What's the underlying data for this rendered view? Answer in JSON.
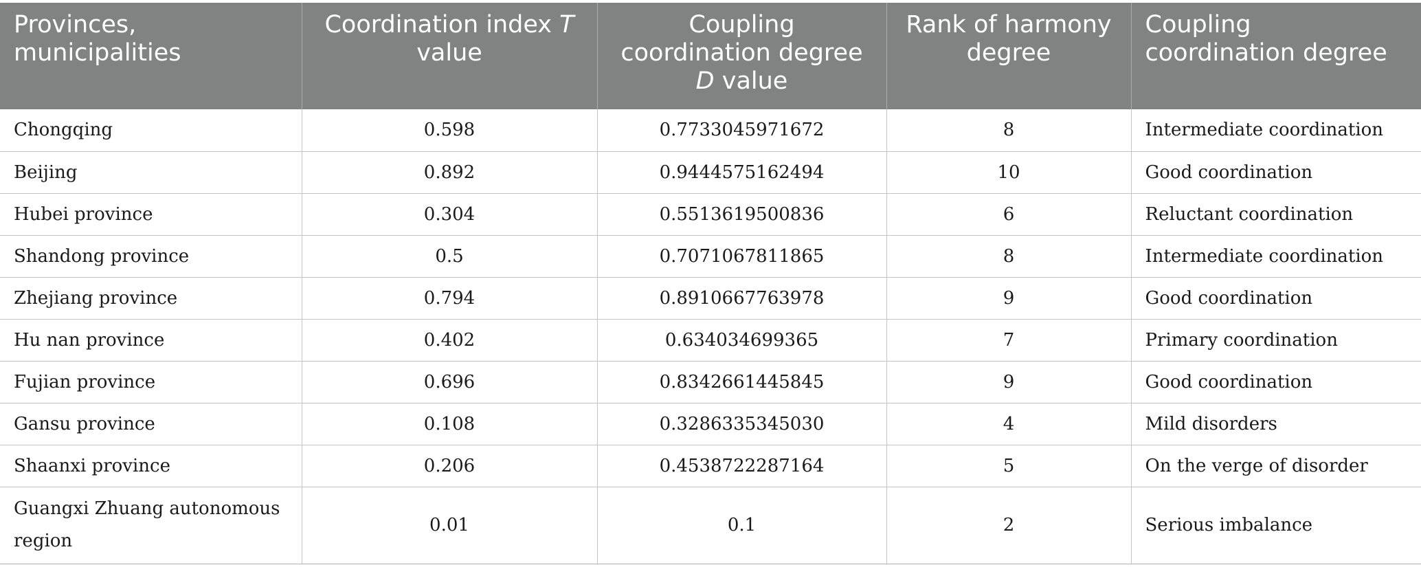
{
  "table": {
    "headers": {
      "col1_line1": "Provinces,",
      "col1_line2": "municipalities",
      "col2_line1_prefix": "Coordination index ",
      "col2_line1_italic": "T",
      "col2_line2": "value",
      "col3_line1": "Coupling",
      "col3_line2": "coordination degree",
      "col3_line3_italic": "D",
      "col3_line3_suffix": " value",
      "col4_line1": "Rank of harmony",
      "col4_line2": "degree",
      "col5_line1": "Coupling",
      "col5_line2": "coordination degree"
    },
    "rows": [
      {
        "region": "Chongqing",
        "t_value": "0.598",
        "d_value": "0.7733045971672",
        "rank": "8",
        "degree": "Intermediate coordination"
      },
      {
        "region": "Beijing",
        "t_value": "0.892",
        "d_value": "0.9444575162494",
        "rank": "10",
        "degree": "Good coordination"
      },
      {
        "region": "Hubei province",
        "t_value": "0.304",
        "d_value": "0.5513619500836",
        "rank": "6",
        "degree": "Reluctant coordination"
      },
      {
        "region": "Shandong province",
        "t_value": "0.5",
        "d_value": "0.7071067811865",
        "rank": "8",
        "degree": "Intermediate coordination"
      },
      {
        "region": "Zhejiang province",
        "t_value": "0.794",
        "d_value": "0.8910667763978",
        "rank": "9",
        "degree": "Good coordination"
      },
      {
        "region": "Hu nan province",
        "t_value": "0.402",
        "d_value": "0.634034699365",
        "rank": "7",
        "degree": "Primary coordination"
      },
      {
        "region": "Fujian province",
        "t_value": "0.696",
        "d_value": "0.8342661445845",
        "rank": "9",
        "degree": "Good coordination"
      },
      {
        "region": "Gansu province",
        "t_value": "0.108",
        "d_value": "0.3286335345030",
        "rank": "4",
        "degree": "Mild disorders"
      },
      {
        "region": "Shaanxi province",
        "t_value": "0.206",
        "d_value": "0.4538722287164",
        "rank": "5",
        "degree": "On the verge of disorder"
      },
      {
        "region": "Guangxi Zhuang autonomous region",
        "t_value": "0.01",
        "d_value": "0.1",
        "rank": "2",
        "degree": "Serious imbalance"
      }
    ]
  }
}
